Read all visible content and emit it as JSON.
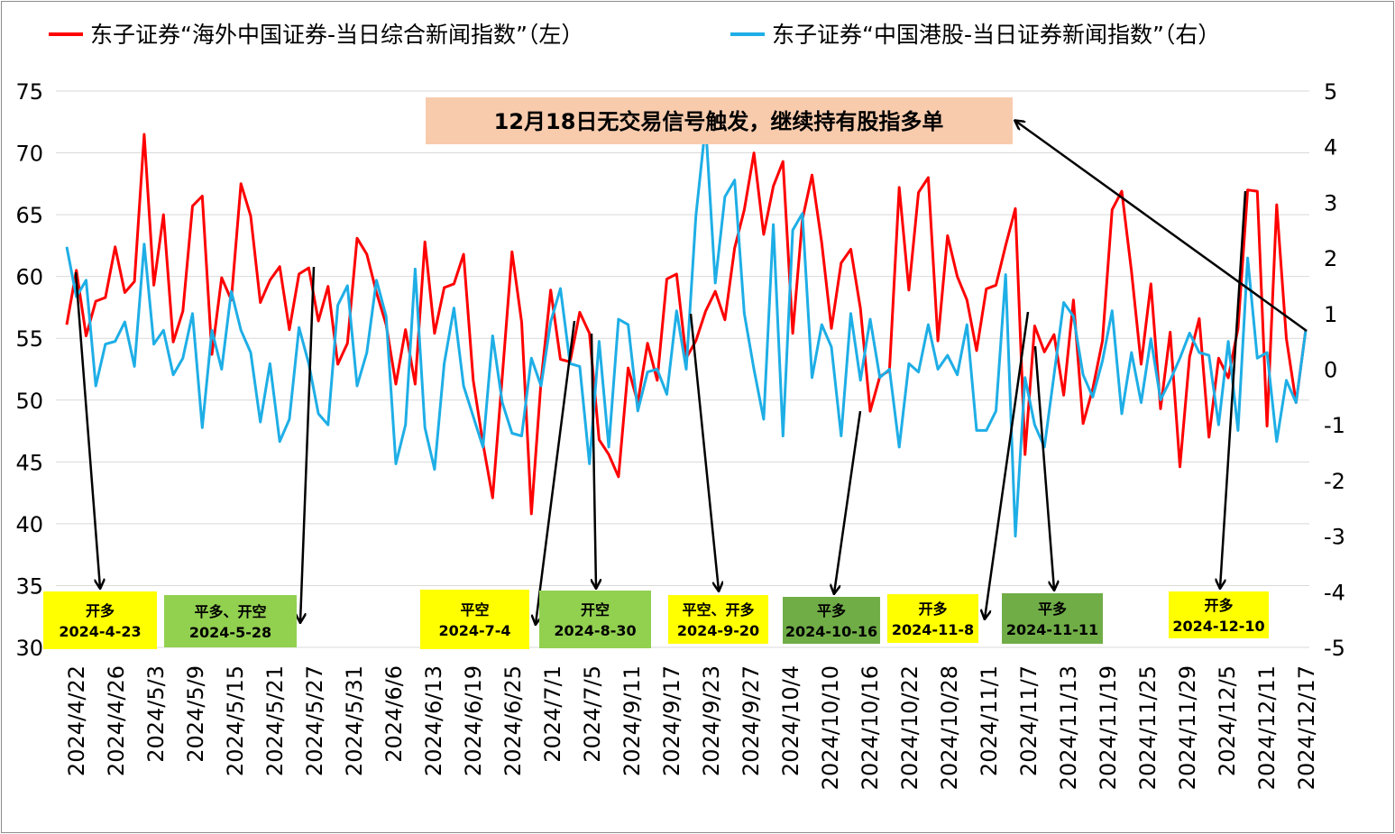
{
  "chart_data": {
    "type": "line",
    "legend": {
      "position": "top",
      "items": [
        {
          "label": "东子证券“海外中国证券-当日综合新闻指数”（左）",
          "color": "#ff0000"
        },
        {
          "label": "东子证券“中国港股-当日证券新闻指数”（右）",
          "color": "#1eaee6"
        }
      ]
    },
    "y_left": {
      "min": 30,
      "max": 75,
      "ticks": [
        "75",
        "70",
        "65",
        "60",
        "55",
        "50",
        "45",
        "40",
        "35",
        "30"
      ]
    },
    "y_right": {
      "min": -5,
      "max": 5,
      "ticks": [
        "5",
        "4",
        "3",
        "2",
        "1",
        "0",
        "-1",
        "-2",
        "-3",
        "-4",
        "-5"
      ]
    },
    "x_tick_labels": [
      "2024/4/22",
      "2024/4/26",
      "2024/5/3",
      "2024/5/9",
      "2024/5/15",
      "2024/5/21",
      "2024/5/27",
      "2024/5/31",
      "2024/6/6",
      "2024/6/13",
      "2024/6/19",
      "2024/6/25",
      "2024/7/1",
      "2024/7/5",
      "2024/9/11",
      "2024/9/17",
      "2024/9/23",
      "2024/9/27",
      "2024/10/4",
      "2024/10/10",
      "2024/10/16",
      "2024/10/22",
      "2024/10/28",
      "2024/11/1",
      "2024/11/7",
      "2024/11/13",
      "2024/11/19",
      "2024/11/25",
      "2024/11/29",
      "2024/12/5",
      "2024/12/11",
      "2024/12/17"
    ],
    "grid": true,
    "series": [
      {
        "name": "东子证券“海外中国证券-当日综合新闻指数”（左）",
        "axis": "left",
        "color": "#ff0000",
        "values": [
          56.1,
          60.5,
          55.2,
          58.0,
          58.3,
          62.4,
          58.7,
          59.6,
          71.5,
          59.3,
          65.0,
          54.7,
          57.2,
          65.7,
          66.5,
          53.7,
          59.9,
          58.1,
          67.5,
          64.9,
          57.9,
          59.7,
          60.8,
          55.7,
          60.2,
          60.7,
          56.4,
          59.2,
          52.9,
          54.6,
          63.1,
          61.8,
          58.7,
          56.1,
          51.3,
          55.7,
          51.3,
          62.8,
          55.4,
          59.1,
          59.4,
          61.8,
          51.6,
          46.5,
          42.1,
          51.9,
          62.0,
          56.3,
          40.8,
          51.5,
          58.9,
          53.3,
          53.1,
          57.1,
          55.4,
          46.8,
          45.6,
          43.8,
          52.6,
          49.8,
          54.6,
          51.6,
          59.8,
          60.2,
          53.4,
          54.8,
          57.2,
          58.8,
          56.5,
          62.3,
          65.4,
          70.0,
          63.4,
          67.3,
          69.3,
          55.4,
          64.6,
          68.2,
          62.7,
          55.8,
          61.1,
          62.2,
          57.4,
          49.1,
          51.9,
          52.4,
          67.2,
          58.9,
          66.8,
          68.0,
          54.8,
          63.3,
          60.0,
          58.1,
          54.0,
          59.0,
          59.3,
          62.5,
          65.5,
          45.6,
          56.0,
          53.9,
          55.3,
          50.4,
          58.1,
          48.1,
          50.9,
          54.8,
          65.4,
          66.9,
          60.4,
          52.9,
          59.4,
          49.3,
          55.5,
          44.6,
          53.5,
          56.6,
          47.0,
          53.4,
          51.8,
          55.8,
          67.0,
          66.9,
          47.9,
          65.8,
          55.0,
          49.8,
          55.7
        ]
      },
      {
        "name": "东子证券“中国港股-当日证券新闻指数”（右）",
        "axis": "right",
        "color": "#1eaee6",
        "values": [
          2.2,
          1.3,
          1.6,
          -0.3,
          0.45,
          0.5,
          0.85,
          0.05,
          2.25,
          0.45,
          0.7,
          -0.1,
          0.2,
          1.0,
          -1.05,
          0.7,
          0.0,
          1.4,
          0.7,
          0.3,
          -0.95,
          0.1,
          -1.3,
          -0.9,
          0.75,
          0.1,
          -0.8,
          -1.0,
          1.15,
          1.5,
          -0.3,
          0.3,
          1.6,
          0.95,
          -1.7,
          -1.0,
          1.8,
          -1.05,
          -1.8,
          0.1,
          1.1,
          -0.3,
          -0.85,
          -1.4,
          0.6,
          -0.6,
          -1.15,
          -1.2,
          0.2,
          -0.3,
          0.85,
          1.45,
          0.1,
          0.05,
          -1.7,
          0.5,
          -1.4,
          0.9,
          0.8,
          -0.75,
          -0.05,
          0.0,
          -0.45,
          1.05,
          0.0,
          2.75,
          4.4,
          1.55,
          3.1,
          3.4,
          1.0,
          0.0,
          -0.9,
          2.6,
          -1.2,
          2.5,
          2.8,
          -0.15,
          0.8,
          0.4,
          -1.2,
          1.0,
          -0.2,
          0.9,
          -0.15,
          0.0,
          -1.4,
          0.1,
          -0.05,
          0.8,
          0.0,
          0.25,
          -0.1,
          0.8,
          -1.1,
          -1.1,
          -0.75,
          1.7,
          -3.0,
          -0.15,
          -1.0,
          -1.4,
          -0.1,
          1.2,
          0.95,
          -0.1,
          -0.5,
          0.15,
          1.05,
          -0.8,
          0.3,
          -0.6,
          0.55,
          -0.55,
          -0.2,
          0.2,
          0.65,
          0.3,
          0.25,
          -1.0,
          0.5,
          -1.1,
          2.0,
          0.2,
          0.3,
          -1.3,
          -0.2,
          -0.6,
          0.7
        ]
      }
    ],
    "annotations": [
      {
        "label": "开多",
        "date": "2024-4-23",
        "bg": "#ffff00"
      },
      {
        "label": "平多、开空",
        "date": "2024-5-28",
        "bg": "#92d050"
      },
      {
        "label": "平空",
        "date": "2024-7-4",
        "bg": "#ffff00"
      },
      {
        "label": "开空",
        "date": "2024-8-30",
        "bg": "#92d050"
      },
      {
        "label": "平空、开多",
        "date": "2024-9-20",
        "bg": "#ffff00"
      },
      {
        "label": "平多",
        "date": "2024-10-16",
        "bg": "#70ad47"
      },
      {
        "label": "开多",
        "date": "2024-11-8",
        "bg": "#ffff00"
      },
      {
        "label": "平多",
        "date": "2024-11-11",
        "bg": "#70ad47"
      },
      {
        "label": "开多",
        "date": "2024-12-10",
        "bg": "#ffff00"
      }
    ],
    "callout": {
      "text": "12月18日无交易信号触发，继续持有股指多单",
      "bg": "#f8cbad"
    }
  }
}
